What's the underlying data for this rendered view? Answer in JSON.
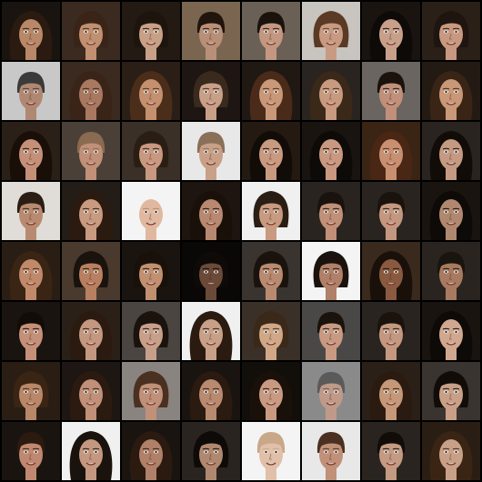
{
  "image": {
    "kind": "generated-face-sample-grid",
    "rows": 8,
    "columns": 8,
    "grid_line_color": "#000000"
  },
  "tiles": [
    {
      "bg": "#1a1410",
      "hair": "#2a1a10",
      "skin": "#b88868",
      "hairStyle": "long"
    },
    {
      "bg": "#3a2a20",
      "hair": "#3a2418",
      "skin": "#c09070",
      "hairStyle": "medium"
    },
    {
      "bg": "#231a14",
      "hair": "#1e140e",
      "skin": "#c8a088",
      "hairStyle": "medium"
    },
    {
      "bg": "#7a6650",
      "hair": "#20140c",
      "skin": "#b89078",
      "hairStyle": "short"
    },
    {
      "bg": "#6a6055",
      "hair": "#1a120c",
      "skin": "#c49880",
      "hairStyle": "short"
    },
    {
      "bg": "#c8c4c0",
      "hair": "#5a3a24",
      "skin": "#c89a82",
      "hairStyle": "medium"
    },
    {
      "bg": "#1a1410",
      "hair": "#0e0a08",
      "skin": "#c8a08a",
      "hairStyle": "long"
    },
    {
      "bg": "#2a2018",
      "hair": "#1e1410",
      "skin": "#c89880",
      "hairStyle": "medium"
    },
    {
      "bg": "#c8c8c8",
      "hair": "#3a3a3a",
      "skin": "#b08872",
      "hairStyle": "short"
    },
    {
      "bg": "#3a2a20",
      "hair": "#3a2418",
      "skin": "#a87860",
      "hairStyle": "long"
    },
    {
      "bg": "#2a1e16",
      "hair": "#4a2e1a",
      "skin": "#c49070",
      "hairStyle": "long"
    },
    {
      "bg": "#1e1612",
      "hair": "#3a2a1e",
      "skin": "#c8a088",
      "hairStyle": "medium"
    },
    {
      "bg": "#201812",
      "hair": "#4a2a18",
      "skin": "#c89878",
      "hairStyle": "long"
    },
    {
      "bg": "#2a2420",
      "hair": "#3a2818",
      "skin": "#c89a80",
      "hairStyle": "long"
    },
    {
      "bg": "#6a6560",
      "hair": "#1a120c",
      "skin": "#c0907a",
      "hairStyle": "short"
    },
    {
      "bg": "#241a14",
      "hair": "#3a2416",
      "skin": "#c89878",
      "hairStyle": "long"
    },
    {
      "bg": "#2a2018",
      "hair": "#1a0f08",
      "skin": "#c49078",
      "hairStyle": "long"
    },
    {
      "bg": "#4a4038",
      "hair": "#8a6a50",
      "skin": "#c09078",
      "hairStyle": "short"
    },
    {
      "bg": "#3a3028",
      "hair": "#2a1e14",
      "skin": "#c89880",
      "hairStyle": "medium"
    },
    {
      "bg": "#e8e8e8",
      "hair": "#8a7058",
      "skin": "#c8a088",
      "hairStyle": "short"
    },
    {
      "bg": "#241a12",
      "hair": "#120c08",
      "skin": "#c89a80",
      "hairStyle": "long"
    },
    {
      "bg": "#1a1410",
      "hair": "#0e0a08",
      "skin": "#c89880",
      "hairStyle": "long"
    },
    {
      "bg": "#3a2414",
      "hair": "#4a2614",
      "skin": "#c89070",
      "hairStyle": "long"
    },
    {
      "bg": "#2a2420",
      "hair": "#120c08",
      "skin": "#c49a82",
      "hairStyle": "long"
    },
    {
      "bg": "#e0ddd8",
      "hair": "#2a1e14",
      "skin": "#b88a70",
      "hairStyle": "short"
    },
    {
      "bg": "#241c16",
      "hair": "#2a1a10",
      "skin": "#c89a80",
      "hairStyle": "long"
    },
    {
      "bg": "#f4f4f4",
      "hair": "#b08a70",
      "skin": "#e0b8a0",
      "hairStyle": "none"
    },
    {
      "bg": "#1e1410",
      "hair": "#1a100a",
      "skin": "#b88870",
      "hairStyle": "long"
    },
    {
      "bg": "#f0f0f0",
      "hair": "#2a1e14",
      "skin": "#c89a80",
      "hairStyle": "medium"
    },
    {
      "bg": "#2a2420",
      "hair": "#1a120c",
      "skin": "#c09078",
      "hairStyle": "short"
    },
    {
      "bg": "#2a2420",
      "hair": "#1a120c",
      "skin": "#c49880",
      "hairStyle": "short"
    },
    {
      "bg": "#1a1410",
      "hair": "#0e0a08",
      "skin": "#b08870",
      "hairStyle": "long"
    },
    {
      "bg": "#2a1e14",
      "hair": "#3a2414",
      "skin": "#c08a6a",
      "hairStyle": "long"
    },
    {
      "bg": "#4a3a2e",
      "hair": "#1a120c",
      "skin": "#b88060",
      "hairStyle": "medium"
    },
    {
      "bg": "#1a1410",
      "hair": "#1a100a",
      "skin": "#c09070",
      "hairStyle": "medium"
    },
    {
      "bg": "#0a0806",
      "hair": "#0e0a08",
      "skin": "#6a4a38",
      "hairStyle": "medium"
    },
    {
      "bg": "#3a3430",
      "hair": "#1a120c",
      "skin": "#b88a70",
      "hairStyle": "medium"
    },
    {
      "bg": "#f4f4f4",
      "hair": "#1a120c",
      "skin": "#b08068",
      "hairStyle": "medium"
    },
    {
      "bg": "#3a2a1e",
      "hair": "#1a100a",
      "skin": "#8a5a40",
      "hairStyle": "long"
    },
    {
      "bg": "#2a2420",
      "hair": "#1a140e",
      "skin": "#a87a60",
      "hairStyle": "short"
    },
    {
      "bg": "#1a1410",
      "hair": "#120c08",
      "skin": "#c49078",
      "hairStyle": "short"
    },
    {
      "bg": "#2a2018",
      "hair": "#2a1a10",
      "skin": "#c49880",
      "hairStyle": "long"
    },
    {
      "bg": "#4a4540",
      "hair": "#1a120c",
      "skin": "#c8a08a",
      "hairStyle": "medium"
    },
    {
      "bg": "#f0f0f0",
      "hair": "#2a1a10",
      "skin": "#c8a088",
      "hairStyle": "long"
    },
    {
      "bg": "#3a3028",
      "hair": "#3a2818",
      "skin": "#d0a888",
      "hairStyle": "medium"
    },
    {
      "bg": "#4a4846",
      "hair": "#1a120c",
      "skin": "#c89a82",
      "hairStyle": "short"
    },
    {
      "bg": "#2a2420",
      "hair": "#1a120c",
      "skin": "#c49880",
      "hairStyle": "short"
    },
    {
      "bg": "#1a1410",
      "hair": "#0e0a08",
      "skin": "#d0a890",
      "hairStyle": "long"
    },
    {
      "bg": "#2a1e14",
      "hair": "#3a2414",
      "skin": "#b88868",
      "hairStyle": "medium"
    },
    {
      "bg": "#1e1612",
      "hair": "#2a1a10",
      "skin": "#c09078",
      "hairStyle": "long"
    },
    {
      "bg": "#8a8480",
      "hair": "#4a3020",
      "skin": "#c09078",
      "hairStyle": "medium"
    },
    {
      "bg": "#1a1410",
      "hair": "#2a1a10",
      "skin": "#b88a70",
      "hairStyle": "long"
    },
    {
      "bg": "#120e0a",
      "hair": "#1a100a",
      "skin": "#c89a82",
      "hairStyle": "long"
    },
    {
      "bg": "#8a8a8a",
      "hair": "#5a5a5a",
      "skin": "#c09a88",
      "hairStyle": "short"
    },
    {
      "bg": "#2a2018",
      "hair": "#2a1a10",
      "skin": "#c49878",
      "hairStyle": "long"
    },
    {
      "bg": "#3a3430",
      "hair": "#120c08",
      "skin": "#c8a088",
      "hairStyle": "medium"
    },
    {
      "bg": "#1a1410",
      "hair": "#2a1a10",
      "skin": "#c08870",
      "hairStyle": "short"
    },
    {
      "bg": "#f0f0f0",
      "hair": "#1a120c",
      "skin": "#c49880",
      "hairStyle": "long"
    },
    {
      "bg": "#1a1410",
      "hair": "#2a1a10",
      "skin": "#b08068",
      "hairStyle": "long"
    },
    {
      "bg": "#2a2420",
      "hair": "#0e0a08",
      "skin": "#b08870",
      "hairStyle": "medium"
    },
    {
      "bg": "#f4f4f4",
      "hair": "#c8a888",
      "skin": "#e0c0a8",
      "hairStyle": "short"
    },
    {
      "bg": "#e8e8e8",
      "hair": "#4a3020",
      "skin": "#c09078",
      "hairStyle": "short"
    },
    {
      "bg": "#2a2420",
      "hair": "#120c08",
      "skin": "#c49a82",
      "hairStyle": "short"
    },
    {
      "bg": "#2a1e14",
      "hair": "#3a2414",
      "skin": "#c8a088",
      "hairStyle": "long"
    }
  ]
}
